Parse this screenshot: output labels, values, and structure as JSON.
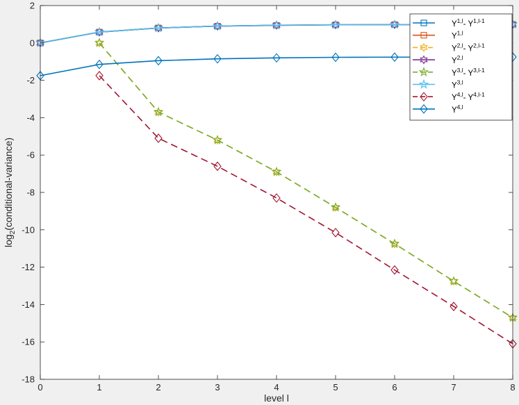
{
  "chart_data": {
    "type": "line",
    "xlabel": "level l",
    "ylabel_main": "log",
    "ylabel_sub": "2",
    "ylabel_rest": "(conditional-variance)",
    "xlim": [
      0,
      8
    ],
    "ylim": [
      -18,
      2
    ],
    "xticks": [
      0,
      1,
      2,
      3,
      4,
      5,
      6,
      7,
      8
    ],
    "yticks": [
      2,
      0,
      -2,
      -4,
      -6,
      -8,
      -10,
      -12,
      -14,
      -16,
      -18
    ],
    "legend_position": "top-right",
    "grid": false,
    "series": [
      {
        "name_base": "Y",
        "name_sup": "1,l",
        "name_tail": "- Y",
        "name_sup2": "1,l-1",
        "color": "#0072bd",
        "dash": "solid",
        "marker": "square",
        "x": [
          0,
          1,
          2,
          3,
          4,
          5,
          6,
          7,
          8
        ],
        "values": [
          0,
          0.58,
          0.8,
          0.9,
          0.94,
          0.97,
          0.98,
          0.99,
          0.99
        ]
      },
      {
        "name_base": "Y",
        "name_sup": "1,l",
        "name_tail": "",
        "name_sup2": "",
        "color": "#d95319",
        "dash": "solid",
        "marker": "square",
        "x": [
          0,
          1,
          2,
          3,
          4,
          5,
          6,
          7,
          8
        ],
        "values": [
          0,
          0.58,
          0.8,
          0.9,
          0.94,
          0.97,
          0.98,
          0.99,
          0.99
        ]
      },
      {
        "name_base": "Y",
        "name_sup": "2,l",
        "name_tail": "- Y",
        "name_sup2": "2,l-1",
        "color": "#edb120",
        "dash": "dashed",
        "marker": "hexagram",
        "x": [
          1,
          2,
          3,
          4,
          5,
          6,
          7,
          8
        ],
        "values": [
          0,
          -3.7,
          -5.2,
          -6.9,
          -8.8,
          -10.75,
          -12.75,
          -14.7
        ]
      },
      {
        "name_base": "Y",
        "name_sup": "2,l",
        "name_tail": "",
        "name_sup2": "",
        "color": "#7e2f8e",
        "dash": "solid",
        "marker": "hexagram",
        "x": [
          0,
          1,
          2,
          3,
          4,
          5,
          6,
          7,
          8
        ],
        "values": [
          0,
          0.58,
          0.8,
          0.9,
          0.95,
          0.97,
          0.98,
          0.99,
          0.99
        ]
      },
      {
        "name_base": "Y",
        "name_sup": "3,l",
        "name_tail": "- Y",
        "name_sup2": "3,l-1",
        "color": "#77ac30",
        "dash": "dashed",
        "marker": "pentagram",
        "x": [
          1,
          2,
          3,
          4,
          5,
          6,
          7,
          8
        ],
        "values": [
          0,
          -3.7,
          -5.2,
          -6.9,
          -8.8,
          -10.75,
          -12.75,
          -14.7
        ]
      },
      {
        "name_base": "Y",
        "name_sup": "3,l",
        "name_tail": "",
        "name_sup2": "",
        "color": "#4dbeee",
        "dash": "solid",
        "marker": "pentagram",
        "x": [
          0,
          1,
          2,
          3,
          4,
          5,
          6,
          7,
          8
        ],
        "values": [
          0,
          0.58,
          0.8,
          0.9,
          0.95,
          0.97,
          0.98,
          0.99,
          0.99
        ]
      },
      {
        "name_base": "Y",
        "name_sup": "4,l",
        "name_tail": "- Y",
        "name_sup2": "4,l-1",
        "color": "#a2142f",
        "dash": "dashed",
        "marker": "diamond",
        "x": [
          1,
          2,
          3,
          4,
          5,
          6,
          7,
          8
        ],
        "values": [
          -1.75,
          -5.1,
          -6.6,
          -8.3,
          -10.15,
          -12.15,
          -14.1,
          -16.1
        ]
      },
      {
        "name_base": "Y",
        "name_sup": "4,l",
        "name_tail": "",
        "name_sup2": "",
        "color": "#0072bd",
        "dash": "solid",
        "marker": "diamond",
        "x": [
          0,
          1,
          2,
          3,
          4,
          5,
          6,
          7,
          8
        ],
        "values": [
          -1.75,
          -1.15,
          -0.95,
          -0.85,
          -0.8,
          -0.77,
          -0.76,
          -0.76,
          -0.75
        ]
      }
    ]
  }
}
